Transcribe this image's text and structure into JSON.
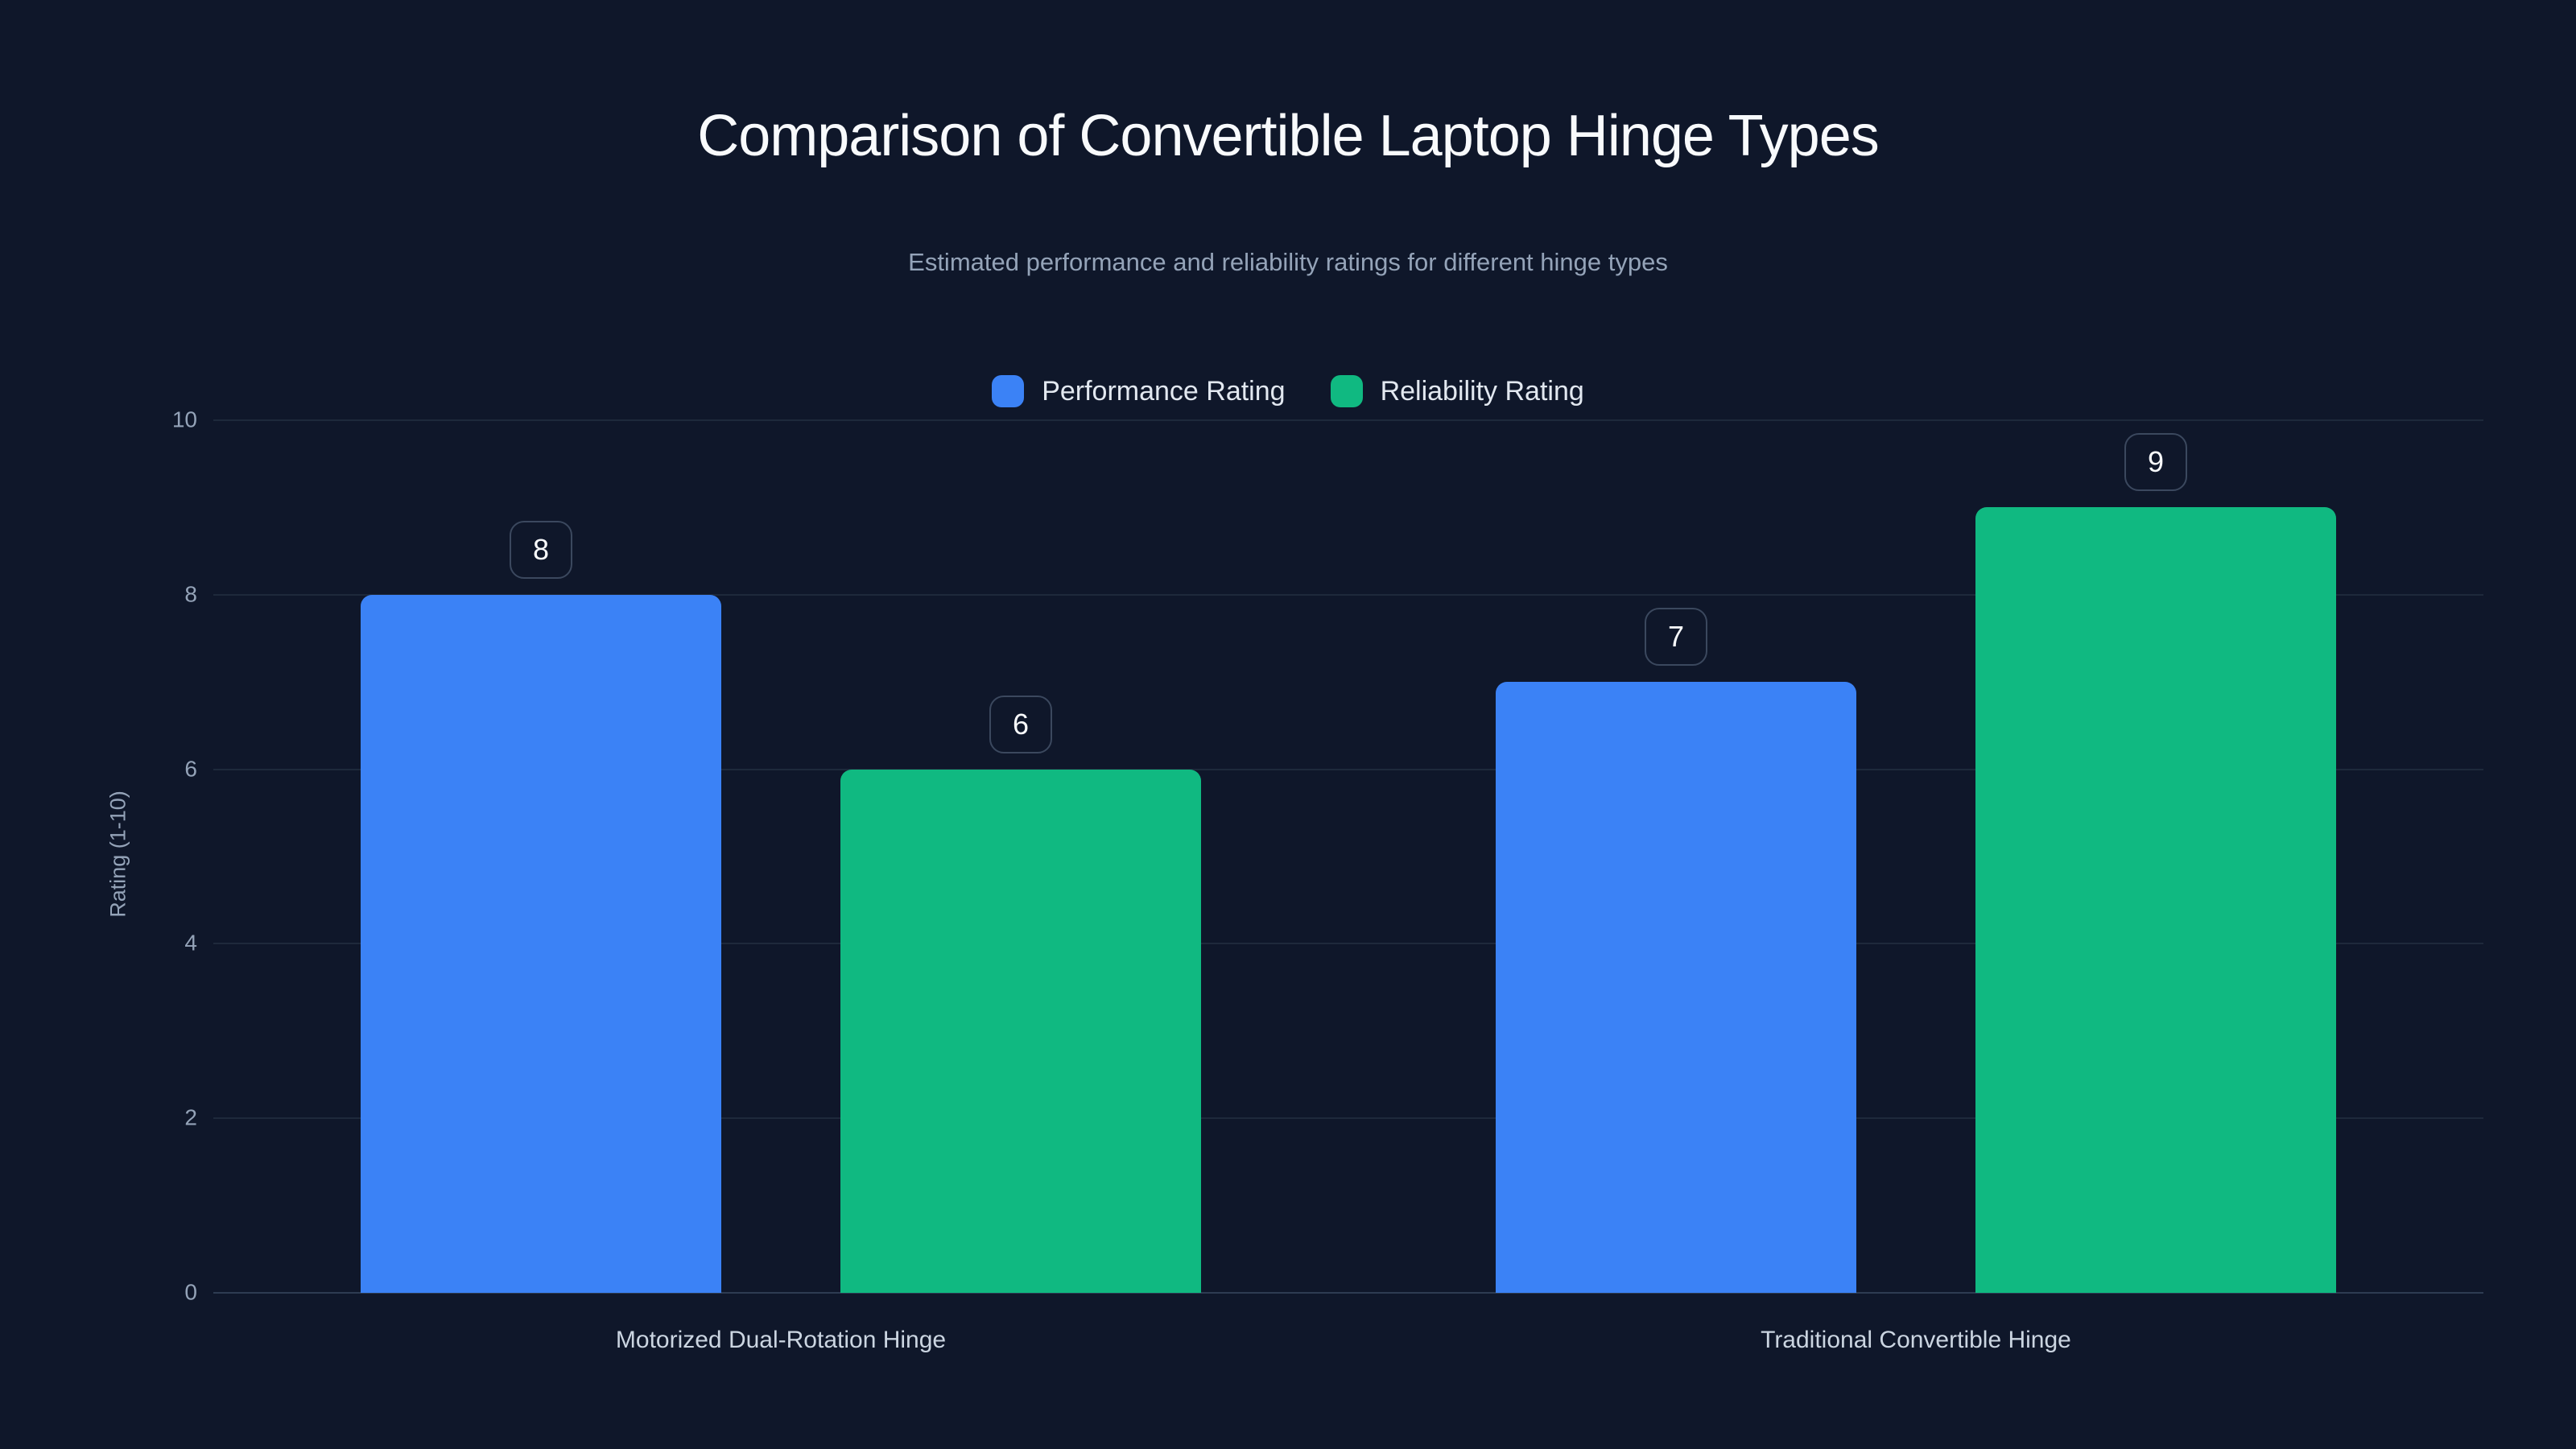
{
  "page": {
    "background_color": "#0F172A",
    "grid_color": "#1E293B",
    "baseline_color": "#2E3C52",
    "badge_border_color": "#3B485E",
    "title_color": "#F8FAFC",
    "subtitle_color": "#94A3B8",
    "axis_text_color": "#94A3B8",
    "category_text_color": "#CBD5E1"
  },
  "header": {
    "title": "Comparison of Convertible Laptop Hinge Types",
    "subtitle": "Estimated performance and reliability ratings for different hinge types"
  },
  "chart_data": {
    "type": "bar",
    "title": "Comparison of Convertible Laptop Hinge Types",
    "subtitle": "Estimated performance and reliability ratings for different hinge types",
    "categories": [
      "Motorized Dual-Rotation Hinge",
      "Traditional Convertible Hinge"
    ],
    "series": [
      {
        "name": "Performance Rating",
        "color": "#3B82F6",
        "values": [
          8,
          7
        ]
      },
      {
        "name": "Reliability Rating",
        "color": "#10B981",
        "values": [
          6,
          9
        ]
      }
    ],
    "xlabel": "",
    "ylabel": "Rating (1-10)",
    "ylim": [
      0,
      10
    ],
    "yticks": [
      0,
      2,
      4,
      6,
      8,
      10
    ],
    "grid": true,
    "legend_position": "top",
    "value_labels_visible": true
  }
}
